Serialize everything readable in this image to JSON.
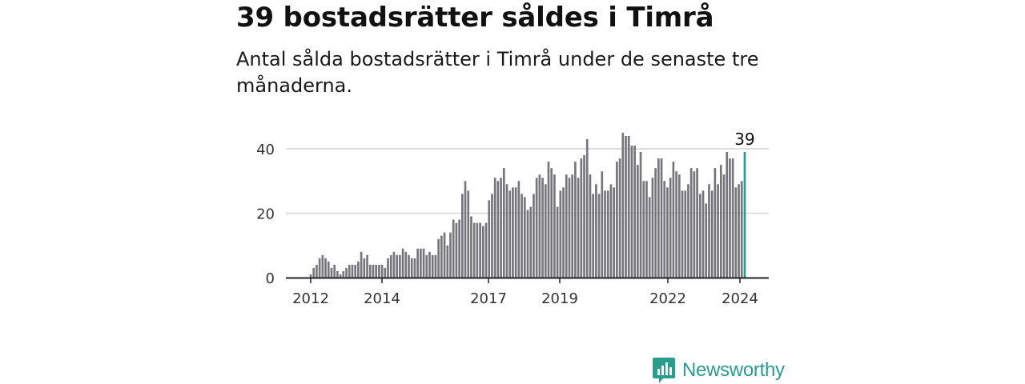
{
  "title": "39 bostadsrätter såldes i Timrå",
  "subtitle": "Antal sålda bostadsrätter i Timrå under de senaste tre månaderna.",
  "logo": {
    "text": "Newsworthy",
    "icon": "newsworthy-logo-icon",
    "color": "#2a9d8f"
  },
  "chart_data": {
    "type": "bar",
    "title": "",
    "xlabel": "",
    "ylabel": "",
    "ylim": [
      0,
      45
    ],
    "y_ticks": [
      0,
      20,
      40
    ],
    "x_tick_labels": [
      "2012",
      "2014",
      "2017",
      "2019",
      "2022",
      "2024"
    ],
    "grid": true,
    "colors": {
      "bar": "#76757b",
      "highlight": "#1e9e91",
      "grid": "#d4d4d4",
      "axis": "#222222"
    },
    "highlight": {
      "label": "39",
      "value": 39
    },
    "series": [
      {
        "values": [
          1,
          3,
          4,
          6,
          7,
          6,
          5,
          3,
          4,
          2,
          1,
          2,
          3,
          4,
          4,
          4,
          5,
          8,
          6,
          7,
          4,
          4,
          4,
          4,
          4,
          3,
          6,
          7,
          8,
          7,
          7,
          9,
          8,
          7,
          6,
          6,
          9,
          9,
          9,
          7,
          8,
          7,
          7,
          12,
          13,
          14,
          10,
          14,
          18,
          17,
          18,
          26,
          30,
          27,
          19,
          17,
          17,
          17,
          16,
          17,
          24,
          26,
          31,
          30,
          31,
          34,
          29,
          27,
          28,
          28,
          30,
          26,
          25,
          21,
          22,
          26,
          31,
          32,
          31,
          29,
          36,
          34,
          32,
          22,
          27,
          28,
          32,
          31,
          32,
          36,
          31,
          37,
          38,
          43,
          32,
          26,
          29,
          26,
          33,
          27,
          27,
          29,
          28,
          36,
          37,
          45,
          44,
          44,
          41,
          41,
          35,
          39,
          30,
          30,
          25,
          31,
          34,
          37,
          37,
          30,
          28,
          31,
          36,
          33,
          32,
          27,
          27,
          29,
          34,
          33,
          34,
          26,
          27,
          23,
          29,
          27,
          34,
          29,
          35,
          32,
          39,
          37,
          37,
          28,
          29,
          30,
          39
        ]
      }
    ]
  }
}
